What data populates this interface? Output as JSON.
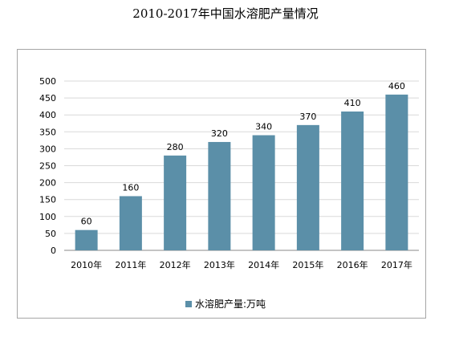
{
  "chart_data": {
    "type": "bar",
    "title": "2010-2017年中国水溶肥产量情况",
    "categories": [
      "2010年",
      "2011年",
      "2012年",
      "2013年",
      "2014年",
      "2015年",
      "2016年",
      "2017年"
    ],
    "series": [
      {
        "name": "水溶肥产量:万吨",
        "values": [
          60,
          160,
          280,
          320,
          340,
          370,
          410,
          460
        ],
        "color": "#5b8fa8"
      }
    ],
    "yticks": [
      0,
      50,
      100,
      150,
      200,
      250,
      300,
      350,
      400,
      450,
      500
    ],
    "ylim": [
      0,
      500
    ],
    "grid": true,
    "legend_position": "bottom"
  }
}
